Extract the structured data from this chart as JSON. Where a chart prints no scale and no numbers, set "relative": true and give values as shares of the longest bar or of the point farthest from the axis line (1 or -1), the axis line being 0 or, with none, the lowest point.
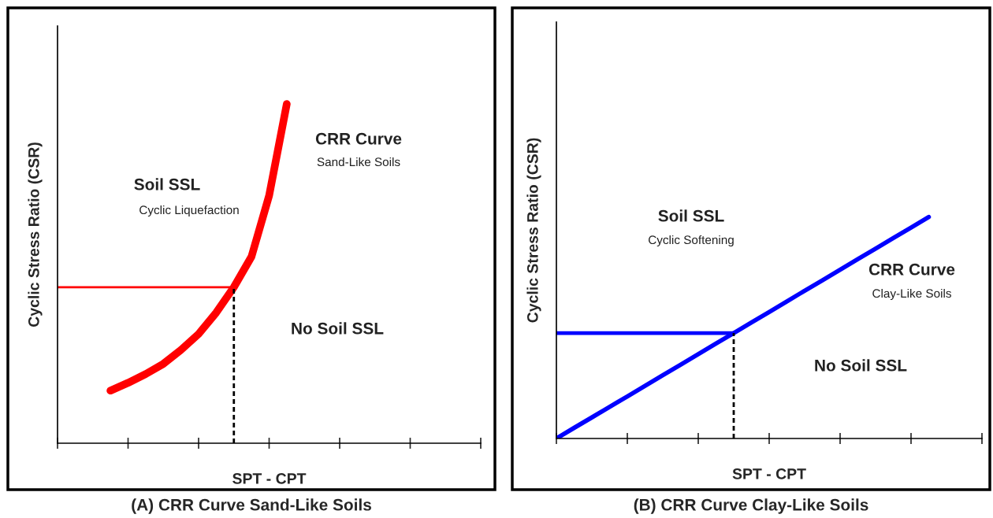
{
  "chart_data": [
    {
      "type": "line",
      "title": "(A) CRR Curve Sand-Like Soils",
      "xlabel": "SPT - CPT",
      "ylabel": "Cyclic Stress Ratio (CSR)",
      "relative": true,
      "categories": [
        null,
        null,
        null,
        null,
        null,
        null,
        null,
        null,
        null,
        null,
        null,
        null,
        null,
        null,
        null,
        null,
        null,
        null,
        null,
        null,
        null,
        null,
        null,
        null,
        null
      ],
      "tick_labels": false,
      "grid": false,
      "legend": false,
      "series": [
        {
          "color": "#ff0000",
          "line_style": "solid",
          "values": [
            null,
            null,
            null,
            0.155,
            0.178,
            0.204,
            0.234,
            0.275,
            0.322,
            0.385,
            0.46,
            0.55,
            0.73,
            1.0,
            null,
            null,
            null,
            null,
            null,
            null,
            null,
            null,
            null,
            null,
            null
          ]
        },
        {
          "color": "#ff0000",
          "line_style": "solid",
          "values": [
            0.46,
            0.46,
            0.46,
            0.46,
            0.46,
            0.46,
            0.46,
            0.46,
            0.46,
            0.46,
            0.46,
            null,
            null,
            null,
            null,
            null,
            null,
            null,
            null,
            null,
            null,
            null,
            null,
            null,
            null
          ]
        }
      ],
      "annotations": [
        "Soil SSL",
        "Cyclic Liquefaction",
        "CRR Curve",
        "Sand-Like Soils",
        "No Soil SSL"
      ]
    },
    {
      "type": "line",
      "title": "(B) CRR Curve Clay-Like Soils",
      "xlabel": "SPT - CPT",
      "ylabel": "Cyclic Stress Ratio (CSR)",
      "relative": true,
      "categories": [
        null,
        null,
        null,
        null,
        null,
        null,
        null,
        null,
        null,
        null,
        null,
        null,
        null,
        null,
        null,
        null,
        null,
        null,
        null,
        null,
        null,
        null,
        null,
        null,
        null
      ],
      "tick_labels": false,
      "grid": false,
      "legend": false,
      "series": [
        {
          "color": "#0000ff",
          "line_style": "solid",
          "values": [
            0,
            0.048,
            0.095,
            0.143,
            0.19,
            0.238,
            0.286,
            0.333,
            0.381,
            0.429,
            0.476,
            0.524,
            0.571,
            0.619,
            0.667,
            0.714,
            0.762,
            0.81,
            0.857,
            0.905,
            0.952,
            1,
            null,
            null,
            null
          ]
        },
        {
          "color": "#0000ff",
          "line_style": "solid",
          "values": [
            0.476,
            0.476,
            0.476,
            0.476,
            0.476,
            0.476,
            0.476,
            0.476,
            0.476,
            0.476,
            0.476,
            null,
            null,
            null,
            null,
            null,
            null,
            null,
            null,
            null,
            null,
            null,
            null,
            null,
            null
          ]
        }
      ],
      "annotations": [
        "Soil SSL",
        "Cyclic Softening",
        "CRR Curve",
        "Clay-Like Soils",
        "No Soil SSL"
      ]
    }
  ]
}
